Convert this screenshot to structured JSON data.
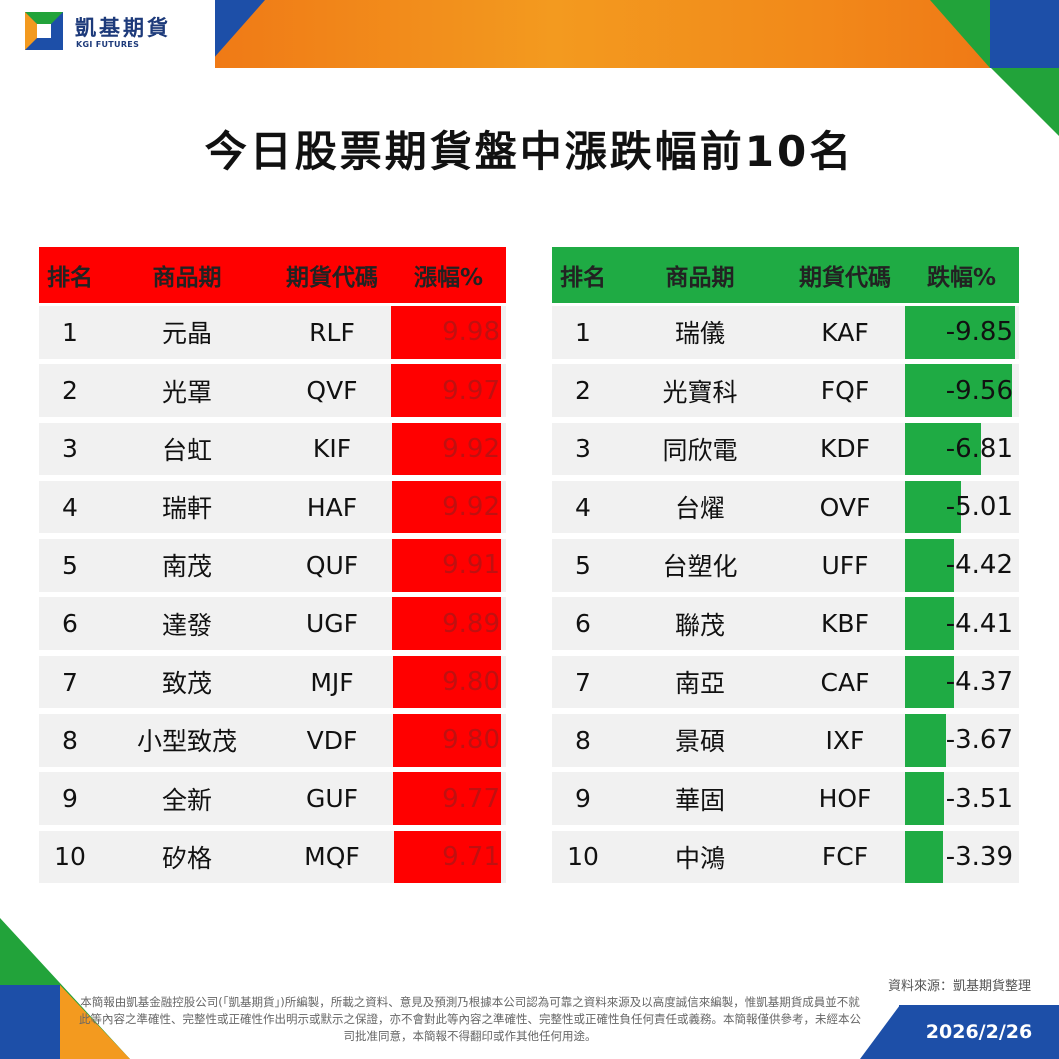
{
  "brand": {
    "name_cn": "凱基期貨",
    "name_en": "KGI FUTURES"
  },
  "title": "今日股票期貨盤中漲跌幅前10名",
  "colors": {
    "up": "#ff0000",
    "down": "#1fab44",
    "orange": "#f39a1f",
    "blue": "#1d4fa8"
  },
  "gainers": {
    "headers": [
      "排名",
      "商品期",
      "期貨代碼",
      "漲幅%"
    ],
    "rows": [
      {
        "rank": "1",
        "name": "元晶",
        "code": "RLF",
        "pct": "9.98"
      },
      {
        "rank": "2",
        "name": "光罩",
        "code": "QVF",
        "pct": "9.97"
      },
      {
        "rank": "3",
        "name": "台虹",
        "code": "KIF",
        "pct": "9.92"
      },
      {
        "rank": "4",
        "name": "瑞軒",
        "code": "HAF",
        "pct": "9.92"
      },
      {
        "rank": "5",
        "name": "南茂",
        "code": "QUF",
        "pct": "9.91"
      },
      {
        "rank": "6",
        "name": "達發",
        "code": "UGF",
        "pct": "9.89"
      },
      {
        "rank": "7",
        "name": "致茂",
        "code": "MJF",
        "pct": "9.80"
      },
      {
        "rank": "8",
        "name": "小型致茂",
        "code": "VDF",
        "pct": "9.80"
      },
      {
        "rank": "9",
        "name": "全新",
        "code": "GUF",
        "pct": "9.77"
      },
      {
        "rank": "10",
        "name": "矽格",
        "code": "MQF",
        "pct": "9.71"
      }
    ]
  },
  "losers": {
    "headers": [
      "排名",
      "商品期",
      "期貨代碼",
      "跌幅%"
    ],
    "rows": [
      {
        "rank": "1",
        "name": "瑞儀",
        "code": "KAF",
        "pct": "-9.85"
      },
      {
        "rank": "2",
        "name": "光寶科",
        "code": "FQF",
        "pct": "-9.56"
      },
      {
        "rank": "3",
        "name": "同欣電",
        "code": "KDF",
        "pct": "-6.81"
      },
      {
        "rank": "4",
        "name": "台燿",
        "code": "OVF",
        "pct": "-5.01"
      },
      {
        "rank": "5",
        "name": "台塑化",
        "code": "UFF",
        "pct": "-4.42"
      },
      {
        "rank": "6",
        "name": "聯茂",
        "code": "KBF",
        "pct": "-4.41"
      },
      {
        "rank": "7",
        "name": "南亞",
        "code": "CAF",
        "pct": "-4.37"
      },
      {
        "rank": "8",
        "name": "景碩",
        "code": "IXF",
        "pct": "-3.67"
      },
      {
        "rank": "9",
        "name": "華固",
        "code": "HOF",
        "pct": "-3.51"
      },
      {
        "rank": "10",
        "name": "中鴻",
        "code": "FCF",
        "pct": "-3.39"
      }
    ]
  },
  "source": "資料來源：凱基期貨整理",
  "disclaimer": "本簡報由凱基金融控股公司(「凱基期貨」)所編製，所載之資料、意見及預測乃根據本公司認為可靠之資料來源及以高度誠信來編製，惟凱基期貨成員並不就此等內容之準確性、完整性或正確性作出明示或默示之保證，亦不會對此等內容之準確性、完整性或正確性負任何責任或義務。本簡報僅供參考，未經本公司批准同意，本簡報不得翻印或作其他任何用途。",
  "date": "2026/2/26"
}
